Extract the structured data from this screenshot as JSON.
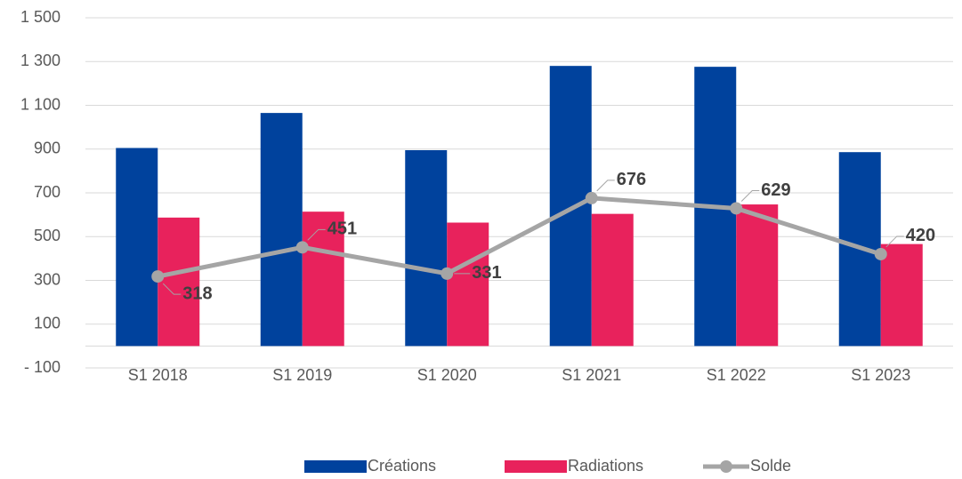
{
  "chart_data": {
    "type": "bar_line",
    "categories": [
      "S1 2018",
      "S1 2019",
      "S1 2020",
      "S1 2021",
      "S1 2022",
      "S1 2023"
    ],
    "series": [
      {
        "name": "Créations",
        "color": "#00429d",
        "type": "bar",
        "values": [
          905,
          1065,
          895,
          1280,
          1276,
          886
        ]
      },
      {
        "name": "Radiations",
        "color": "#e8225c",
        "type": "bar",
        "values": [
          587,
          614,
          564,
          604,
          647,
          466
        ]
      },
      {
        "name": "Solde",
        "color": "#a5a5a5",
        "type": "line",
        "values": [
          318,
          451,
          331,
          676,
          629,
          420
        ]
      }
    ],
    "ylim": [
      -100,
      1500
    ],
    "yticks": [
      {
        "value": -100,
        "label": "- 100"
      },
      100,
      300,
      500,
      700,
      900,
      {
        "value": 1100,
        "label": "1 100"
      },
      {
        "value": 1300,
        "label": "1 300"
      },
      {
        "value": 1500,
        "label": "1 500"
      }
    ],
    "grid": true,
    "legend": "bottom"
  }
}
